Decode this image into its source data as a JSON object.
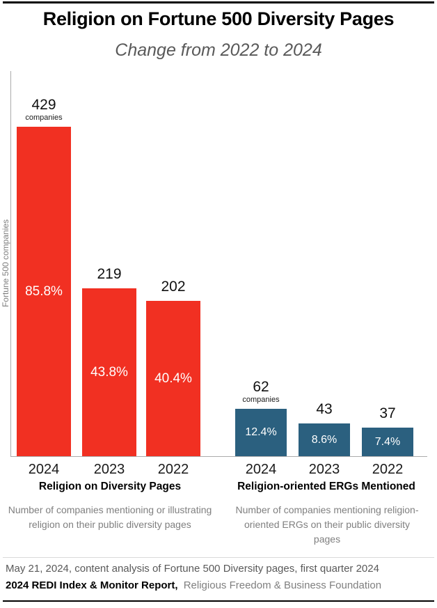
{
  "header": {
    "title": "Religion on Fortune 500 Diversity Pages",
    "subtitle": "Change from 2022 to 2024"
  },
  "chart_data": {
    "type": "bar",
    "title": "Religion on Fortune 500 Diversity Pages",
    "subtitle": "Change from 2022 to 2024",
    "ylabel": "Fortune 500 companies",
    "ylim": [
      0,
      450
    ],
    "grid": false,
    "legend": "none",
    "groups": [
      {
        "label": "Religion on Diversity Pages",
        "caption": "Number of companies mentioning or illustrating religion on their public diversity pages",
        "color": "#f13022",
        "categories": [
          "2024",
          "2023",
          "2022"
        ],
        "values": [
          429,
          219,
          202
        ],
        "percent_labels": [
          "85.8%",
          "43.8%",
          "40.4%"
        ],
        "unit_label": "companies"
      },
      {
        "label": "Religion-oriented ERGs Mentioned",
        "caption": "Number of companies mentioning religion-oriented ERGs on their public diversity pages",
        "color": "#2b607f",
        "categories": [
          "2024",
          "2023",
          "2022"
        ],
        "values": [
          62,
          43,
          37
        ],
        "percent_labels": [
          "12.4%",
          "8.6%",
          "7.4%"
        ],
        "unit_label": "companies"
      }
    ]
  },
  "footer": {
    "line1": "May 21, 2024, content analysis of Fortune 500 Diversity pages, first quarter 2024",
    "line2_bold": "2024 REDI Index & Monitor Report,",
    "line2_gray": "Religious Freedom & Business Foundation"
  }
}
